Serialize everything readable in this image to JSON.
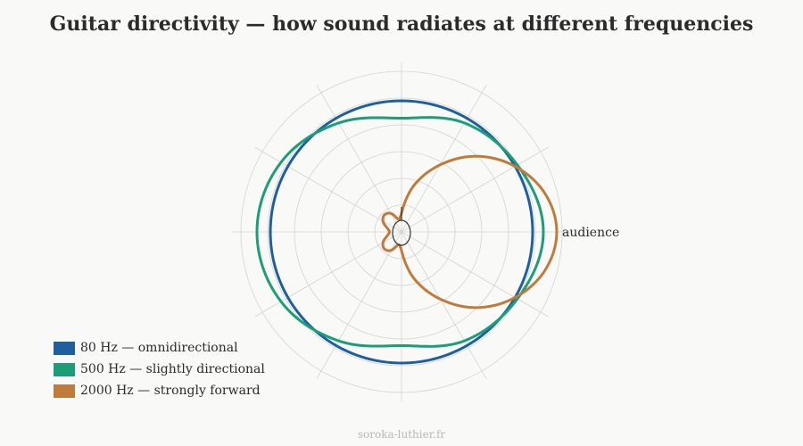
{
  "title": "Guitar directivity — how sound radiates at different frequencies",
  "footer": "soroka-luthier.fr",
  "chart_data": {
    "type": "polar",
    "direction_label": "audience",
    "radial_gridlines": 6,
    "angular_gridlines_deg": 30,
    "max_radius": 1.0,
    "series": [
      {
        "name": "80 Hz — omnidirectional",
        "color": "#1f5fa0",
        "angles_deg": [
          0,
          30,
          60,
          90,
          120,
          150,
          180,
          210,
          240,
          270,
          300,
          330
        ],
        "r": [
          0.98,
          0.98,
          0.98,
          0.98,
          0.98,
          0.98,
          0.98,
          0.98,
          0.98,
          0.98,
          0.98,
          0.98
        ]
      },
      {
        "name": "500 Hz — slightly directional",
        "color": "#1b9e77",
        "angles_deg": [
          0,
          30,
          60,
          90,
          120,
          150,
          180,
          210,
          240,
          270,
          300,
          330
        ],
        "r": [
          1.06,
          1.0,
          0.94,
          0.85,
          0.94,
          1.04,
          1.08,
          1.04,
          0.94,
          0.85,
          0.94,
          1.0
        ]
      },
      {
        "name": "2000 Hz — strongly forward",
        "color": "#c07a3a",
        "angles_deg": [
          0,
          15,
          30,
          45,
          60,
          75,
          90,
          105,
          120,
          135,
          150,
          165,
          180,
          195,
          210,
          225,
          240,
          255,
          270,
          285,
          300,
          315,
          330,
          345
        ],
        "r": [
          1.16,
          1.11,
          0.98,
          0.8,
          0.58,
          0.36,
          0.14,
          0.1,
          0.16,
          0.18,
          0.16,
          0.11,
          0.09,
          0.11,
          0.16,
          0.18,
          0.16,
          0.1,
          0.14,
          0.36,
          0.58,
          0.8,
          0.98,
          1.11
        ]
      }
    ]
  }
}
